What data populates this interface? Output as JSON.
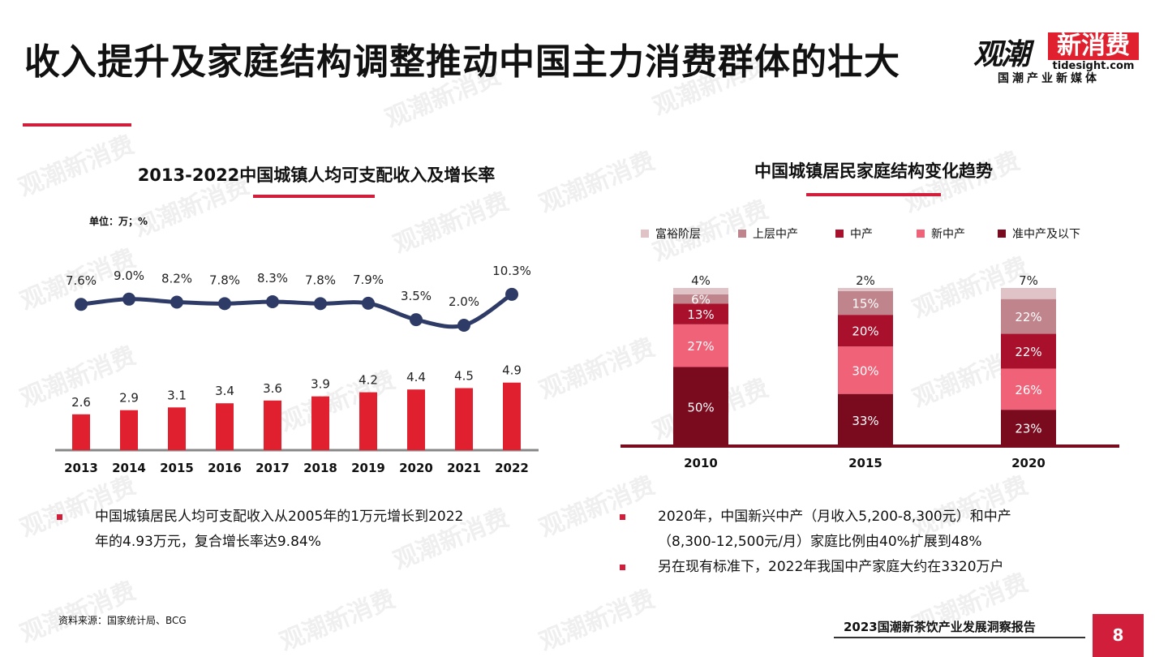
{
  "page": {
    "title": "收入提升及家庭结构调整推动中国主力消费群体的壮大",
    "logo": {
      "main": "观潮",
      "red": "新消费",
      "url": "tidesight.com",
      "sub": "国潮产业新媒体"
    },
    "watermark_text": "观潮新消费",
    "source": "资料来源：国家统计局、BCG",
    "report_name": "2023国潮新茶饮产业发展洞察报告",
    "page_number": "8",
    "accent_color": "#d11f3b"
  },
  "left_notes": [
    "中国城镇居民人均可支配收入从2005年的1万元增长到2022",
    "年的4.93万元，复合增长率达9.84%"
  ],
  "right_notes": [
    {
      "lines": [
        "2020年，中国新兴中产（月收入5,200-8,300元）和中产",
        "（8,300-12,500元/月）家庭比例由40%扩展到48%"
      ]
    },
    {
      "lines": [
        "另在现有标准下，2022年我国中产家庭大约在3320万户"
      ]
    }
  ],
  "chart_data": [
    {
      "type": "bar",
      "title": "2013-2022中国城镇人均可支配收入及增长率",
      "unit_label": "单位：万；%",
      "categories": [
        "2013",
        "2014",
        "2015",
        "2016",
        "2017",
        "2018",
        "2019",
        "2020",
        "2021",
        "2022"
      ],
      "series": [
        {
          "values": [
            2.6,
            2.9,
            3.1,
            3.4,
            3.6,
            3.9,
            4.2,
            4.4,
            4.5,
            4.9
          ],
          "labels": [
            "2.6",
            "2.9",
            "3.1",
            "3.4",
            "3.6",
            "3.9",
            "4.2",
            "4.4",
            "4.5",
            "4.9"
          ],
          "color": "#e0202e"
        },
        {
          "type": "line",
          "values": [
            7.6,
            9.0,
            8.2,
            7.8,
            8.3,
            7.8,
            7.9,
            3.5,
            2.0,
            10.3
          ],
          "labels": [
            "7.6%",
            "9.0%",
            "8.2%",
            "7.8%",
            "8.3%",
            "7.8%",
            "7.9%",
            "3.5%",
            "2.0%",
            "10.3%"
          ],
          "color": "#2f3b67"
        }
      ],
      "grid": false
    },
    {
      "type": "bar",
      "stacked": true,
      "title": "中国城镇居民家庭结构变化趋势",
      "categories": [
        "2010",
        "2015",
        "2020"
      ],
      "series": [
        {
          "name": "准中产及以下",
          "values": [
            50,
            33,
            23
          ],
          "color": "#7a0a1e",
          "labels": [
            "50%",
            "33%",
            "23%"
          ]
        },
        {
          "name": "新中产",
          "values": [
            27,
            30,
            26
          ],
          "color": "#f06277",
          "labels": [
            "27%",
            "30%",
            "26%"
          ]
        },
        {
          "name": "中产",
          "values": [
            13,
            20,
            22
          ],
          "color": "#a8102b",
          "labels": [
            "13%",
            "20%",
            "22%"
          ]
        },
        {
          "name": "上层中产",
          "values": [
            6,
            15,
            22
          ],
          "color": "#c0858c",
          "labels": [
            "6%",
            "15%",
            "22%"
          ]
        },
        {
          "name": "富裕阶层",
          "values": [
            4,
            2,
            7
          ],
          "color": "#dfc3c6",
          "labels": [
            "4%",
            "2%",
            "7%"
          ]
        }
      ],
      "legend_order": [
        "富裕阶层",
        "上层中产",
        "中产",
        "新中产",
        "准中产及以下"
      ],
      "legend_position": "top",
      "grid": false
    }
  ]
}
